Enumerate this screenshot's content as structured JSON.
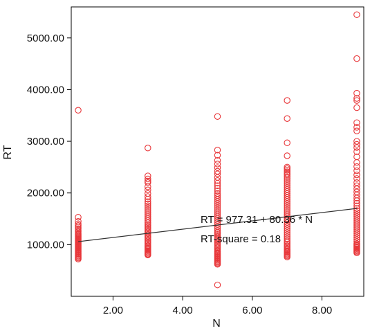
{
  "chart_data": {
    "type": "scatter",
    "title": "",
    "xlabel": "N",
    "ylabel": "RT",
    "xlim": [
      0.8,
      9.2
    ],
    "ylim": [
      0,
      5600
    ],
    "grid": false,
    "legend": "none",
    "x_ticks": [
      "2.00",
      "4.00",
      "6.00",
      "8.00"
    ],
    "y_ticks": [
      "1000.00",
      "2000.00",
      "3000.00",
      "4000.00",
      "5000.00"
    ],
    "marker_color": "#e8373a",
    "fit_line_color": "#333333",
    "series": [
      {
        "x": [
          1,
          1,
          1,
          1,
          1,
          1,
          1,
          1,
          1,
          1,
          1,
          1,
          1,
          1,
          1,
          1,
          1,
          1,
          1,
          1,
          1,
          1,
          1,
          1,
          1,
          1,
          1,
          1,
          1,
          1,
          1,
          1,
          1,
          1,
          1
        ],
        "y": [
          3600,
          1530,
          1450,
          1400,
          1370,
          1340,
          1310,
          1280,
          1250,
          1220,
          1200,
          1180,
          1160,
          1140,
          1120,
          1100,
          1080,
          1060,
          1040,
          1020,
          1000,
          980,
          960,
          940,
          920,
          900,
          880,
          860,
          840,
          820,
          800,
          780,
          760,
          740,
          720
        ]
      },
      {
        "x": [
          3,
          3,
          3,
          3,
          3,
          3,
          3,
          3,
          3,
          3,
          3,
          3,
          3,
          3,
          3,
          3,
          3,
          3,
          3,
          3,
          3,
          3,
          3,
          3,
          3,
          3,
          3,
          3,
          3,
          3,
          3,
          3,
          3,
          3,
          3,
          3,
          3,
          3,
          3,
          3,
          3,
          3,
          3,
          3,
          3,
          3
        ],
        "y": [
          2870,
          2330,
          2270,
          2230,
          2200,
          2120,
          2060,
          1990,
          1930,
          1880,
          1830,
          1790,
          1750,
          1710,
          1670,
          1630,
          1590,
          1550,
          1510,
          1470,
          1430,
          1400,
          1370,
          1340,
          1310,
          1280,
          1250,
          1220,
          1190,
          1160,
          1130,
          1100,
          1070,
          1040,
          1010,
          980,
          960,
          940,
          920,
          900,
          880,
          860,
          840,
          820,
          810,
          800
        ]
      },
      {
        "x": [
          5,
          5,
          5,
          5,
          5,
          5,
          5,
          5,
          5,
          5,
          5,
          5,
          5,
          5,
          5,
          5,
          5,
          5,
          5,
          5,
          5,
          5,
          5,
          5,
          5,
          5,
          5,
          5,
          5,
          5,
          5,
          5,
          5,
          5,
          5,
          5,
          5,
          5,
          5,
          5,
          5,
          5,
          5,
          5,
          5,
          5,
          5,
          5,
          5,
          5,
          5,
          5,
          5,
          5,
          5,
          5,
          5,
          5,
          5,
          5
        ],
        "y": [
          3480,
          2830,
          2730,
          2630,
          2560,
          2490,
          2420,
          2370,
          2300,
          2240,
          2190,
          2140,
          2090,
          2040,
          1990,
          1950,
          1910,
          1870,
          1830,
          1790,
          1750,
          1710,
          1670,
          1630,
          1590,
          1550,
          1510,
          1470,
          1430,
          1390,
          1350,
          1310,
          1270,
          1240,
          1210,
          1180,
          1150,
          1120,
          1090,
          1060,
          1030,
          1000,
          970,
          940,
          910,
          880,
          860,
          840,
          820,
          800,
          780,
          760,
          740,
          720,
          700,
          680,
          660,
          640,
          620,
          220
        ]
      },
      {
        "x": [
          7,
          7,
          7,
          7,
          7,
          7,
          7,
          7,
          7,
          7,
          7,
          7,
          7,
          7,
          7,
          7,
          7,
          7,
          7,
          7,
          7,
          7,
          7,
          7,
          7,
          7,
          7,
          7,
          7,
          7,
          7,
          7,
          7,
          7,
          7,
          7,
          7,
          7,
          7,
          7,
          7,
          7,
          7,
          7,
          7,
          7,
          7,
          7,
          7,
          7,
          7,
          7,
          7,
          7,
          7
        ],
        "y": [
          3790,
          3440,
          2970,
          2720,
          2500,
          2470,
          2440,
          2410,
          2380,
          2350,
          2310,
          2270,
          2230,
          2190,
          2150,
          2110,
          2070,
          2030,
          1990,
          1950,
          1910,
          1870,
          1830,
          1790,
          1750,
          1710,
          1670,
          1630,
          1590,
          1550,
          1510,
          1470,
          1430,
          1390,
          1350,
          1310,
          1270,
          1230,
          1190,
          1150,
          1110,
          1070,
          1040,
          1010,
          980,
          950,
          920,
          900,
          880,
          860,
          840,
          820,
          800,
          780,
          760
        ]
      },
      {
        "x": [
          9,
          9,
          9,
          9,
          9,
          9,
          9,
          9,
          9,
          9,
          9,
          9,
          9,
          9,
          9,
          9,
          9,
          9,
          9,
          9,
          9,
          9,
          9,
          9,
          9,
          9,
          9,
          9,
          9,
          9,
          9,
          9,
          9,
          9,
          9,
          9,
          9,
          9,
          9,
          9,
          9,
          9,
          9,
          9,
          9,
          9,
          9,
          9,
          9,
          9,
          9,
          9,
          9,
          9,
          9
        ],
        "y": [
          5450,
          4600,
          3930,
          3830,
          3790,
          3650,
          3360,
          3270,
          3200,
          3000,
          2940,
          2880,
          2800,
          2700,
          2590,
          2510,
          2430,
          2350,
          2280,
          2200,
          2140,
          2080,
          2020,
          1960,
          1900,
          1850,
          1800,
          1750,
          1700,
          1660,
          1620,
          1580,
          1540,
          1500,
          1460,
          1420,
          1380,
          1340,
          1300,
          1260,
          1220,
          1180,
          1140,
          1100,
          1060,
          1020,
          1000,
          980,
          960,
          940,
          920,
          900,
          880,
          860,
          840
        ]
      }
    ],
    "fit_line": {
      "intercept": 977.31,
      "slope": 80.36,
      "x_range": [
        1,
        9
      ]
    },
    "annotations": [
      "RT = 977.31 + 80.36 * N",
      "RT-square = 0.18"
    ]
  }
}
